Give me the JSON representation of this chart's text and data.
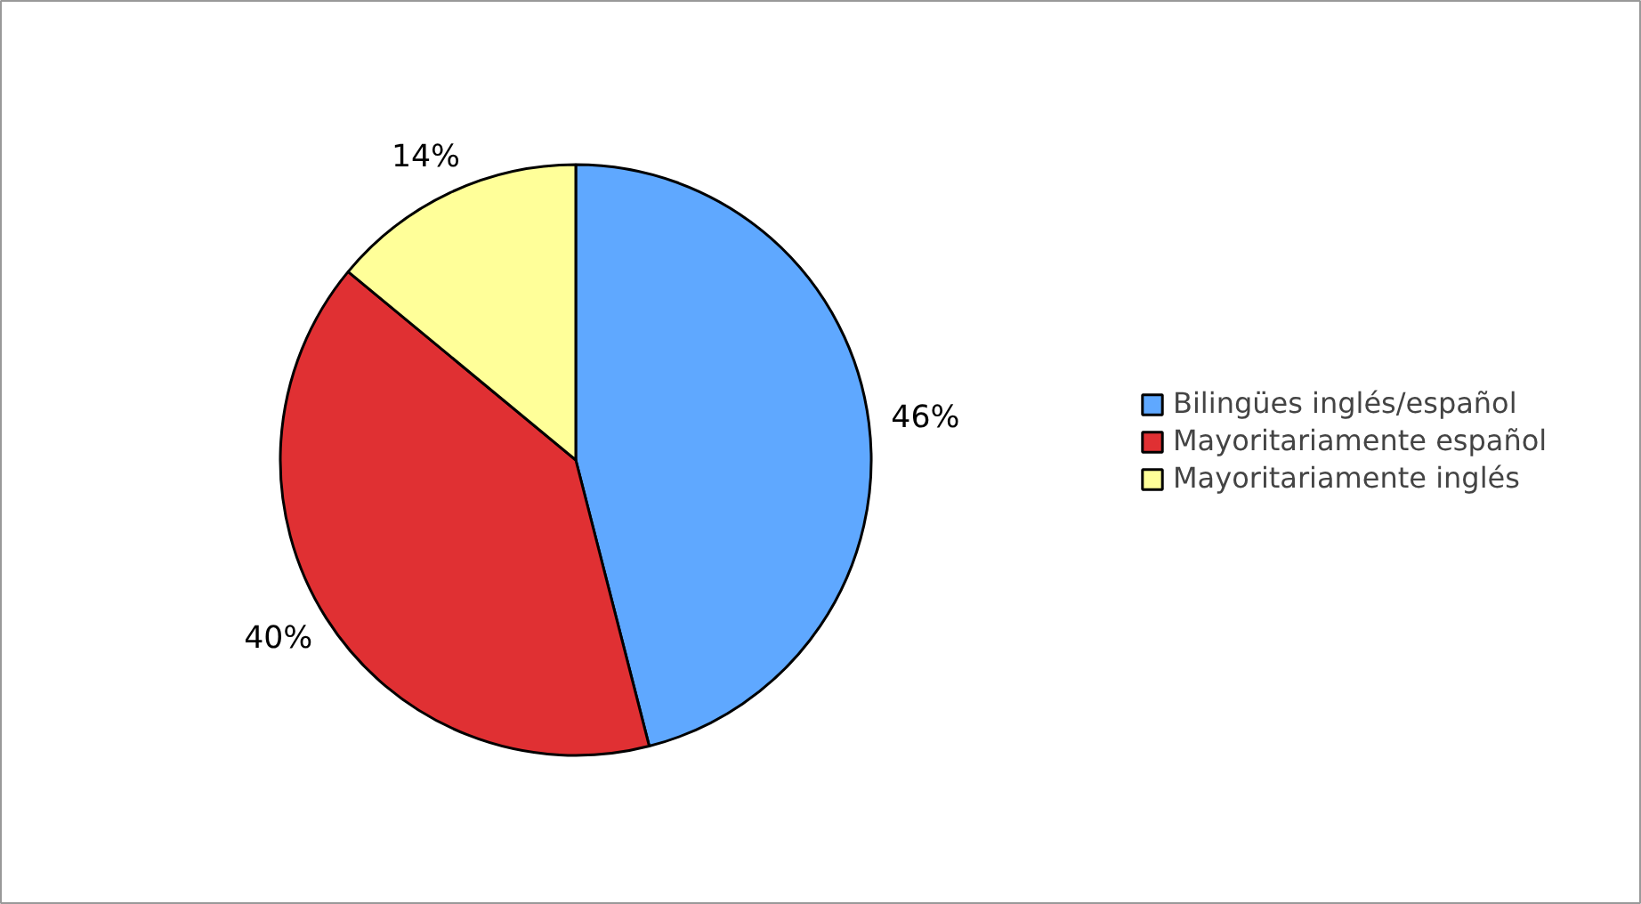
{
  "chart_data": {
    "type": "pie",
    "categories": [
      "Bilingües inglés/español",
      "Mayoritariamente español",
      "Mayoritariamente inglés"
    ],
    "values": [
      46,
      40,
      14
    ],
    "colors": [
      "#5fa8ff",
      "#e03033",
      "#ffff99"
    ],
    "value_labels": [
      "46%",
      "40%",
      "14%"
    ],
    "legend": "right"
  }
}
